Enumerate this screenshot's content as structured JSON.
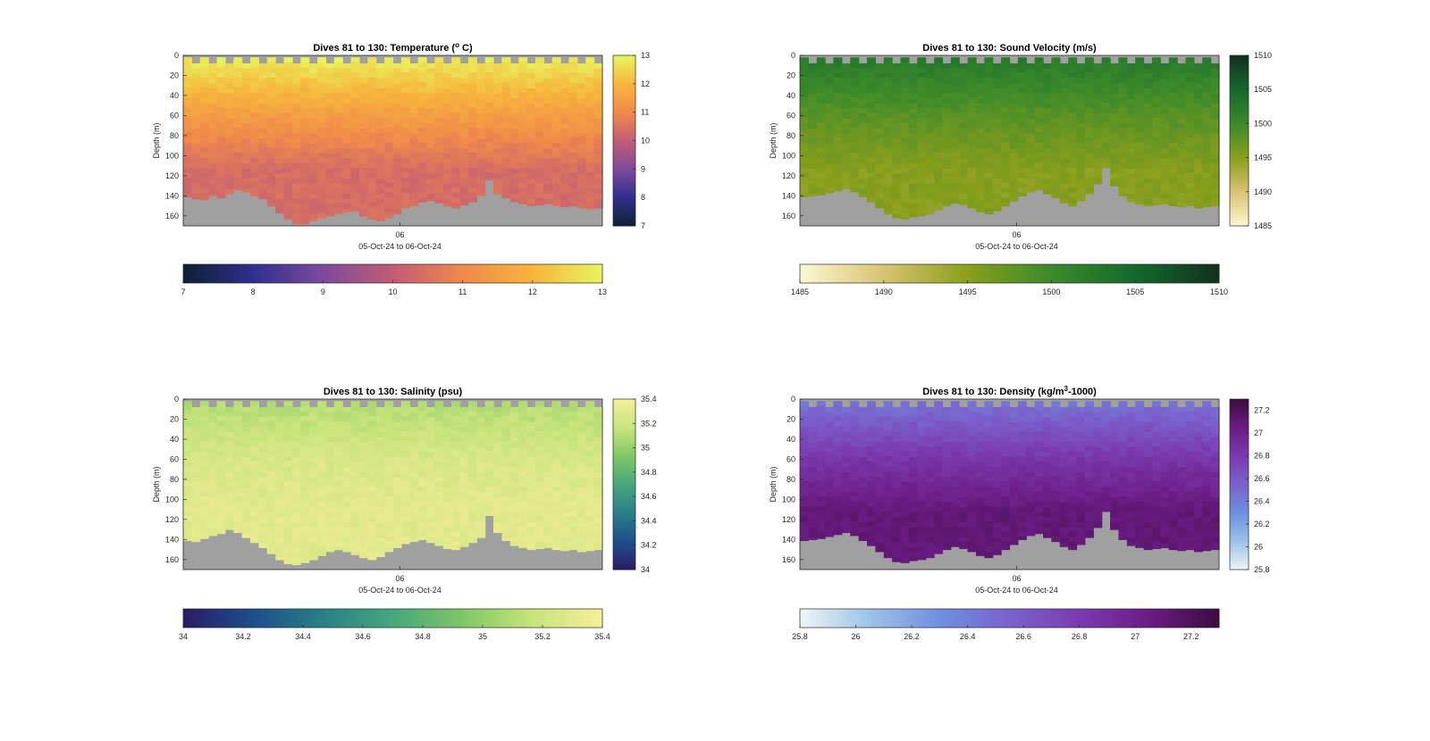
{
  "chart_data": [
    {
      "type": "heatmap",
      "title": "Dives 81 to 130: Temperature (",
      "title_sup": "o",
      "title_tail": " C)",
      "ylabel": "Depth (m)",
      "xtick_label": "06",
      "xlabel": "05-Oct-24 to 06-Oct-24",
      "y_ticks": [
        0,
        20,
        40,
        60,
        80,
        100,
        120,
        140,
        160
      ],
      "ylim": [
        0,
        170
      ],
      "y_reversed": true,
      "dives": [
        81,
        130
      ],
      "colorbar_range": [
        7,
        13
      ],
      "colorbar_ticks": [
        7,
        8,
        9,
        10,
        11,
        12,
        13
      ],
      "colormap": [
        "#0d2033",
        "#2f2f8f",
        "#7d4a9c",
        "#c25c76",
        "#f08a4b",
        "#f7b53c",
        "#e8f55f"
      ],
      "profile": {
        "surface": 12.9,
        "mid": 11.4,
        "deep": 10.4
      },
      "bottom_depth_profile": [
        141,
        143,
        144,
        140,
        142,
        138,
        134,
        136,
        140,
        143,
        150,
        157,
        163,
        168,
        168,
        165,
        162,
        160,
        158,
        156,
        155,
        160,
        163,
        165,
        162,
        158,
        152,
        150,
        146,
        145,
        147,
        150,
        152,
        149,
        146,
        140,
        124,
        138,
        142,
        146,
        148,
        150,
        149,
        148,
        150,
        151,
        150,
        152,
        153,
        152
      ]
    },
    {
      "type": "heatmap",
      "title": "Dives 81 to 130: Sound Velocity (m/s)",
      "ylabel": "Depth (m)",
      "xtick_label": "06",
      "xlabel": "05-Oct-24 to 06-Oct-24",
      "y_ticks": [
        0,
        20,
        40,
        60,
        80,
        100,
        120,
        140,
        160
      ],
      "ylim": [
        0,
        170
      ],
      "y_reversed": true,
      "dives": [
        81,
        130
      ],
      "colorbar_range": [
        1485,
        1510
      ],
      "colorbar_ticks": [
        1485,
        1490,
        1495,
        1500,
        1505,
        1510
      ],
      "colormap": [
        "#fdf8d3",
        "#d9c373",
        "#8a9f1c",
        "#3b8a2a",
        "#14692d",
        "#12301e"
      ],
      "profile": {
        "surface": 1502.5,
        "mid": 1498.0,
        "deep": 1495.2
      },
      "bottom_depth_profile": [
        141,
        140,
        139,
        137,
        135,
        133,
        136,
        141,
        146,
        152,
        158,
        162,
        163,
        161,
        160,
        158,
        154,
        150,
        147,
        149,
        152,
        156,
        158,
        155,
        150,
        145,
        140,
        136,
        134,
        138,
        142,
        147,
        150,
        145,
        138,
        128,
        112,
        130,
        140,
        146,
        148,
        150,
        149,
        148,
        150,
        151,
        150,
        152,
        151,
        150
      ]
    },
    {
      "type": "heatmap",
      "title": "Dives 81 to 130: Salinity (psu)",
      "ylabel": "Depth (m)",
      "xtick_label": "06",
      "xlabel": "05-Oct-24 to 06-Oct-24",
      "y_ticks": [
        0,
        20,
        40,
        60,
        80,
        100,
        120,
        140,
        160
      ],
      "ylim": [
        0,
        170
      ],
      "y_reversed": true,
      "dives": [
        81,
        130
      ],
      "colorbar_range": [
        34,
        35.4
      ],
      "colorbar_ticks": [
        34,
        34.2,
        34.4,
        34.6,
        34.8,
        35,
        35.2,
        35.4
      ],
      "colorbar_tick_labels": [
        "34",
        "34.2",
        "34.4",
        "34.6",
        "34.8",
        "35",
        "35.2",
        "35.4"
      ],
      "colormap": [
        "#2b1a66",
        "#1d4f8c",
        "#2a7f86",
        "#46a77d",
        "#7fc766",
        "#c8e47b",
        "#f7ee9a"
      ],
      "profile": {
        "surface": 35.1,
        "mid": 35.25,
        "deep": 35.3
      },
      "bottom_depth_profile": [
        141,
        142,
        139,
        136,
        134,
        130,
        133,
        138,
        143,
        148,
        154,
        160,
        164,
        165,
        163,
        160,
        156,
        152,
        150,
        152,
        155,
        158,
        160,
        157,
        152,
        148,
        144,
        142,
        140,
        143,
        146,
        149,
        150,
        147,
        143,
        138,
        116,
        133,
        141,
        146,
        148,
        150,
        149,
        148,
        150,
        151,
        150,
        152,
        151,
        150
      ]
    },
    {
      "type": "heatmap",
      "title": "Dives 81 to 130: Density (kg/m",
      "title_sup": "3",
      "title_tail": "-1000)",
      "ylabel": "Depth (m)",
      "xtick_label": "06",
      "xlabel": "05-Oct-24 to 06-Oct-24",
      "y_ticks": [
        0,
        20,
        40,
        60,
        80,
        100,
        120,
        140,
        160
      ],
      "ylim": [
        0,
        170
      ],
      "y_reversed": true,
      "dives": [
        81,
        130
      ],
      "colorbar_range": [
        25.8,
        27.3
      ],
      "colorbar_ticks": [
        25.8,
        26,
        26.2,
        26.4,
        26.6,
        26.8,
        27,
        27.2
      ],
      "colorbar_tick_labels": [
        "25.8",
        "26",
        "26.2",
        "26.4",
        "26.6",
        "26.8",
        "27",
        "27.2"
      ],
      "colormap": [
        "#eef6f7",
        "#9cc3e8",
        "#6f8fe0",
        "#7a62cc",
        "#7b3bb0",
        "#6b1c84",
        "#3c0c3e"
      ],
      "profile": {
        "surface": 26.45,
        "mid": 26.85,
        "deep": 27.1
      },
      "bottom_depth_profile": [
        141,
        140,
        139,
        137,
        135,
        133,
        136,
        141,
        146,
        152,
        158,
        162,
        163,
        161,
        160,
        158,
        154,
        150,
        147,
        149,
        152,
        156,
        158,
        155,
        150,
        145,
        140,
        136,
        134,
        138,
        142,
        147,
        150,
        145,
        138,
        128,
        112,
        130,
        140,
        146,
        148,
        150,
        149,
        148,
        150,
        151,
        150,
        152,
        151,
        150
      ]
    }
  ]
}
